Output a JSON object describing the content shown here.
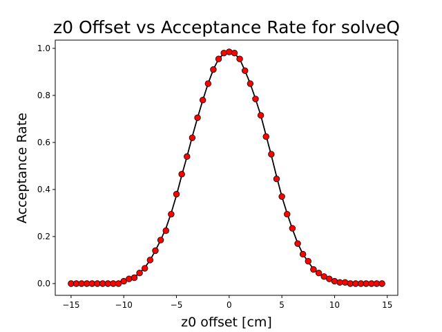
{
  "chart_data": {
    "type": "scatter",
    "title": "z0 Offset vs Acceptance Rate for solveQ",
    "xlabel": "z0 offset [cm]",
    "ylabel": "Acceptance Rate",
    "xlim": [
      -16.5,
      16.0
    ],
    "ylim": [
      -0.05,
      1.035
    ],
    "xticks": [
      -15,
      -10,
      -5,
      0,
      5,
      10,
      15
    ],
    "yticks": [
      0.0,
      0.2,
      0.4,
      0.6,
      0.8,
      1.0
    ],
    "xtick_labels": [
      "−15",
      "−10",
      "−5",
      "0",
      "5",
      "10",
      "15"
    ],
    "ytick_labels": [
      "0.0",
      "0.2",
      "0.4",
      "0.6",
      "0.8",
      "1.0"
    ],
    "grid": false,
    "marker_color": "#ff0000",
    "marker_edge_color": "#000000",
    "line_color": "#000000",
    "x": [
      -15.0,
      -14.5,
      -14.0,
      -13.5,
      -13.0,
      -12.5,
      -12.0,
      -11.5,
      -11.0,
      -10.5,
      -10.0,
      -9.5,
      -9.0,
      -8.5,
      -8.0,
      -7.5,
      -7.0,
      -6.5,
      -6.0,
      -5.5,
      -5.0,
      -4.5,
      -4.0,
      -3.5,
      -3.0,
      -2.5,
      -2.0,
      -1.5,
      -1.0,
      -0.5,
      0.0,
      0.5,
      1.0,
      1.5,
      2.0,
      2.5,
      3.0,
      3.5,
      4.0,
      4.5,
      5.0,
      5.5,
      6.0,
      6.5,
      7.0,
      7.5,
      8.0,
      8.5,
      9.0,
      9.5,
      10.0,
      10.5,
      11.0,
      11.5,
      12.0,
      12.5,
      13.0,
      13.5,
      14.0,
      14.5
    ],
    "values": [
      0.0,
      0.0,
      0.0,
      0.0,
      0.0,
      0.0,
      0.0,
      0.0,
      0.0,
      0.0,
      0.01,
      0.02,
      0.025,
      0.045,
      0.065,
      0.1,
      0.14,
      0.185,
      0.225,
      0.295,
      0.38,
      0.465,
      0.54,
      0.62,
      0.705,
      0.78,
      0.85,
      0.91,
      0.955,
      0.98,
      0.985,
      0.98,
      0.955,
      0.905,
      0.85,
      0.785,
      0.715,
      0.625,
      0.55,
      0.445,
      0.37,
      0.295,
      0.235,
      0.17,
      0.125,
      0.095,
      0.06,
      0.045,
      0.03,
      0.02,
      0.01,
      0.005,
      0.005,
      0.0,
      0.0,
      0.0,
      0.0,
      0.0,
      0.0,
      0.0
    ],
    "fit": {
      "x": [
        -15.0,
        -14.0,
        -13.0,
        -12.0,
        -11.0,
        -10.5,
        -10.0,
        -9.5,
        -9.0,
        -8.5,
        -8.0,
        -7.5,
        -7.0,
        -6.5,
        -6.0,
        -5.5,
        -5.0,
        -4.5,
        -4.0,
        -3.5,
        -3.0,
        -2.5,
        -2.0,
        -1.5,
        -1.0,
        -0.5,
        0.0,
        0.5,
        1.0,
        1.5,
        2.0,
        2.5,
        3.0,
        3.5,
        4.0,
        4.5,
        5.0,
        5.5,
        6.0,
        6.5,
        7.0,
        7.5,
        8.0,
        8.5,
        9.0,
        9.5,
        10.0,
        10.5,
        11.0,
        12.0,
        13.0,
        14.0,
        14.5
      ],
      "values": [
        0.0,
        0.0,
        0.0,
        0.0,
        0.0,
        0.002,
        0.008,
        0.016,
        0.027,
        0.045,
        0.068,
        0.1,
        0.14,
        0.185,
        0.235,
        0.3,
        0.375,
        0.46,
        0.54,
        0.625,
        0.705,
        0.78,
        0.85,
        0.91,
        0.955,
        0.978,
        0.985,
        0.978,
        0.955,
        0.905,
        0.85,
        0.785,
        0.715,
        0.63,
        0.545,
        0.455,
        0.37,
        0.298,
        0.232,
        0.172,
        0.125,
        0.092,
        0.062,
        0.042,
        0.027,
        0.016,
        0.008,
        0.003,
        0.001,
        0.0,
        0.0,
        0.0,
        0.0
      ]
    }
  }
}
